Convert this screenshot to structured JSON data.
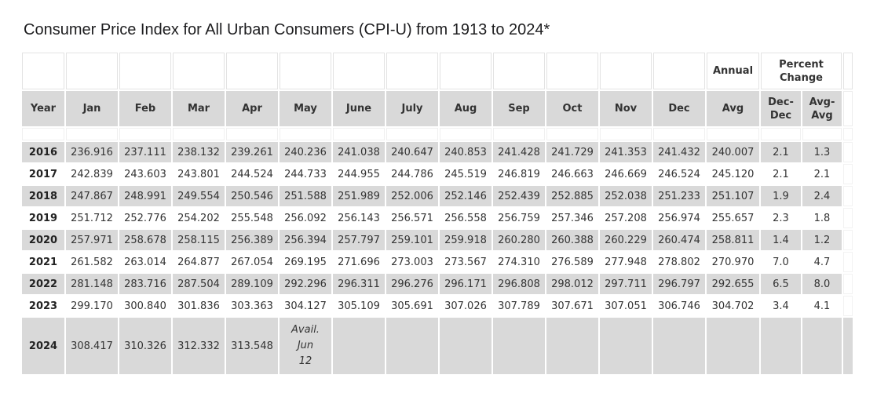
{
  "title": "Consumer Price Index for All Urban Consumers (CPI-U) from 1913 to 2024*",
  "colors": {
    "row_shade": "#d9d9d9",
    "table_text": "#333333",
    "title_text": "#1d1d1f",
    "grid_border": "#e3e3e3"
  },
  "chart_data": {
    "type": "table",
    "title": "Consumer Price Index for All Urban Consumers (CPI-U) from 1913 to 2024*",
    "group_headers": {
      "annual": "Annual",
      "percent_change": "Percent Change"
    },
    "columns": [
      "Year",
      "Jan",
      "Feb",
      "Mar",
      "Apr",
      "May",
      "June",
      "July",
      "Aug",
      "Sep",
      "Oct",
      "Nov",
      "Dec",
      "Avg",
      "Dec-Dec",
      "Avg-Avg"
    ],
    "rows": [
      {
        "year": "2016",
        "values": [
          "236.916",
          "237.111",
          "238.132",
          "239.261",
          "240.236",
          "241.038",
          "240.647",
          "240.853",
          "241.428",
          "241.729",
          "241.353",
          "241.432",
          "240.007",
          "2.1",
          "1.3"
        ]
      },
      {
        "year": "2017",
        "values": [
          "242.839",
          "243.603",
          "243.801",
          "244.524",
          "244.733",
          "244.955",
          "244.786",
          "245.519",
          "246.819",
          "246.663",
          "246.669",
          "246.524",
          "245.120",
          "2.1",
          "2.1"
        ]
      },
      {
        "year": "2018",
        "values": [
          "247.867",
          "248.991",
          "249.554",
          "250.546",
          "251.588",
          "251.989",
          "252.006",
          "252.146",
          "252.439",
          "252.885",
          "252.038",
          "251.233",
          "251.107",
          "1.9",
          "2.4"
        ]
      },
      {
        "year": "2019",
        "values": [
          "251.712",
          "252.776",
          "254.202",
          "255.548",
          "256.092",
          "256.143",
          "256.571",
          "256.558",
          "256.759",
          "257.346",
          "257.208",
          "256.974",
          "255.657",
          "2.3",
          "1.8"
        ]
      },
      {
        "year": "2020",
        "values": [
          "257.971",
          "258.678",
          "258.115",
          "256.389",
          "256.394",
          "257.797",
          "259.101",
          "259.918",
          "260.280",
          "260.388",
          "260.229",
          "260.474",
          "258.811",
          "1.4",
          "1.2"
        ]
      },
      {
        "year": "2021",
        "values": [
          "261.582",
          "263.014",
          "264.877",
          "267.054",
          "269.195",
          "271.696",
          "273.003",
          "273.567",
          "274.310",
          "276.589",
          "277.948",
          "278.802",
          "270.970",
          "7.0",
          "4.7"
        ]
      },
      {
        "year": "2022",
        "values": [
          "281.148",
          "283.716",
          "287.504",
          "289.109",
          "292.296",
          "296.311",
          "296.276",
          "296.171",
          "296.808",
          "298.012",
          "297.711",
          "296.797",
          "292.655",
          "6.5",
          "8.0"
        ]
      },
      {
        "year": "2023",
        "values": [
          "299.170",
          "300.840",
          "301.836",
          "303.363",
          "304.127",
          "305.109",
          "305.691",
          "307.026",
          "307.789",
          "307.671",
          "307.051",
          "306.746",
          "304.702",
          "3.4",
          "4.1"
        ]
      },
      {
        "year": "2024",
        "values": [
          "308.417",
          "310.326",
          "312.332",
          "313.548",
          "Avail.\nJun\n12",
          "",
          "",
          "",
          "",
          "",
          "",
          "",
          "",
          "",
          ""
        ]
      }
    ]
  }
}
